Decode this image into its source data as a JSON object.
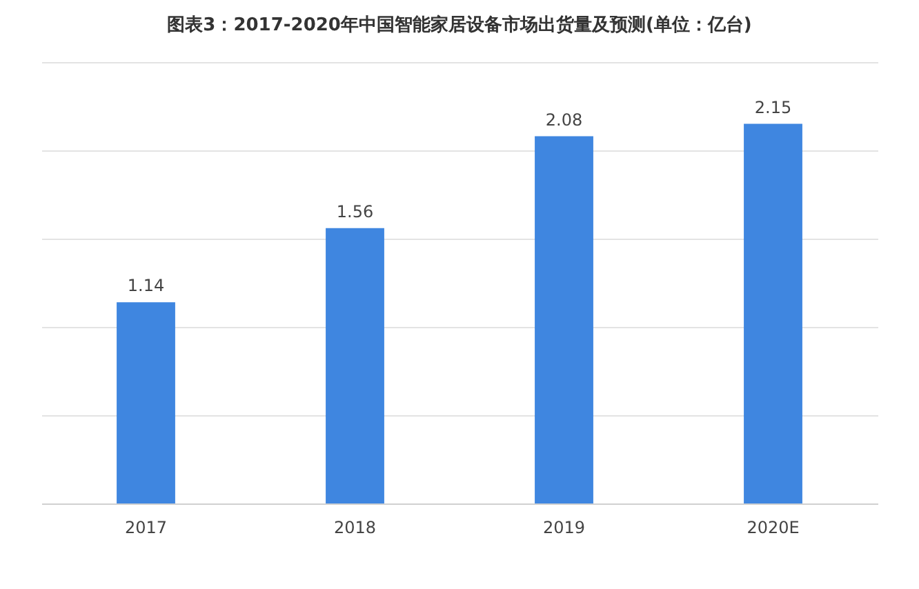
{
  "chart_data": {
    "type": "bar",
    "title": "图表3：2017-2020年中国智能家居设备市场出货量及预测(单位：亿台)",
    "categories": [
      "2017",
      "2018",
      "2019",
      "2020E"
    ],
    "values": [
      1.14,
      1.56,
      2.08,
      2.15
    ],
    "color": "#3f86e0",
    "ylim": [
      0,
      2.5
    ],
    "yticks": [
      {
        "value": 0,
        "label": null
      },
      {
        "value": 0.5,
        "label": null
      },
      {
        "value": 1,
        "label": null
      },
      {
        "value": 1.5,
        "label": null
      },
      {
        "value": 2,
        "label": null
      },
      {
        "value": 2.5,
        "label": null
      }
    ],
    "grid": "y",
    "tick_labels": "x",
    "data_labels": true
  }
}
